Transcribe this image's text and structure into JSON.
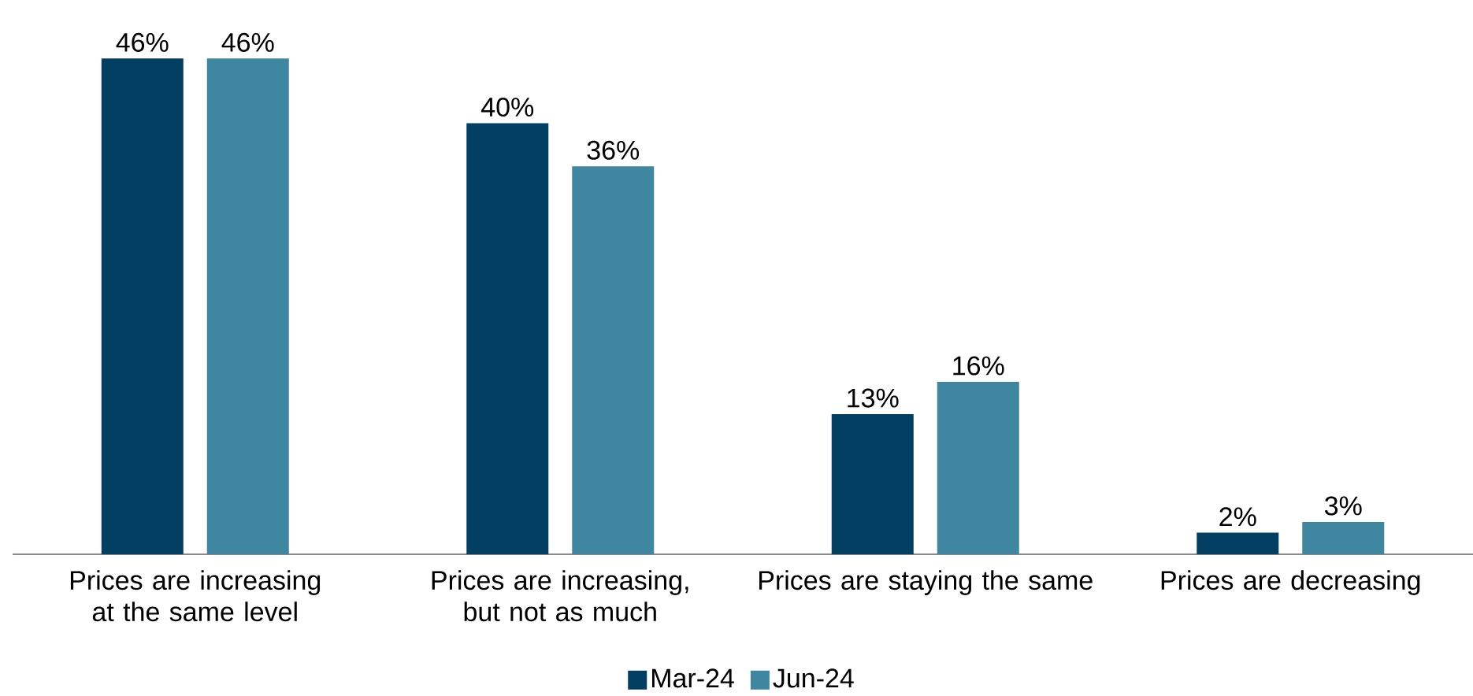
{
  "chart_data": {
    "type": "bar",
    "categories": [
      "Prices are increasing at the same level",
      "Prices are increasing, but not as much",
      "Prices are staying the same",
      "Prices are decreasing"
    ],
    "series": [
      {
        "name": "Mar-24",
        "color": "#023f62",
        "values": [
          46,
          40,
          13,
          2
        ],
        "value_labels": [
          "46%",
          "40%",
          "13%",
          "2%"
        ]
      },
      {
        "name": "Jun-24",
        "color": "#3f86a0",
        "values": [
          46,
          36,
          16,
          3
        ],
        "value_labels": [
          "46%",
          "36%",
          "16%",
          "3%"
        ]
      }
    ],
    "legend": "bottom"
  }
}
